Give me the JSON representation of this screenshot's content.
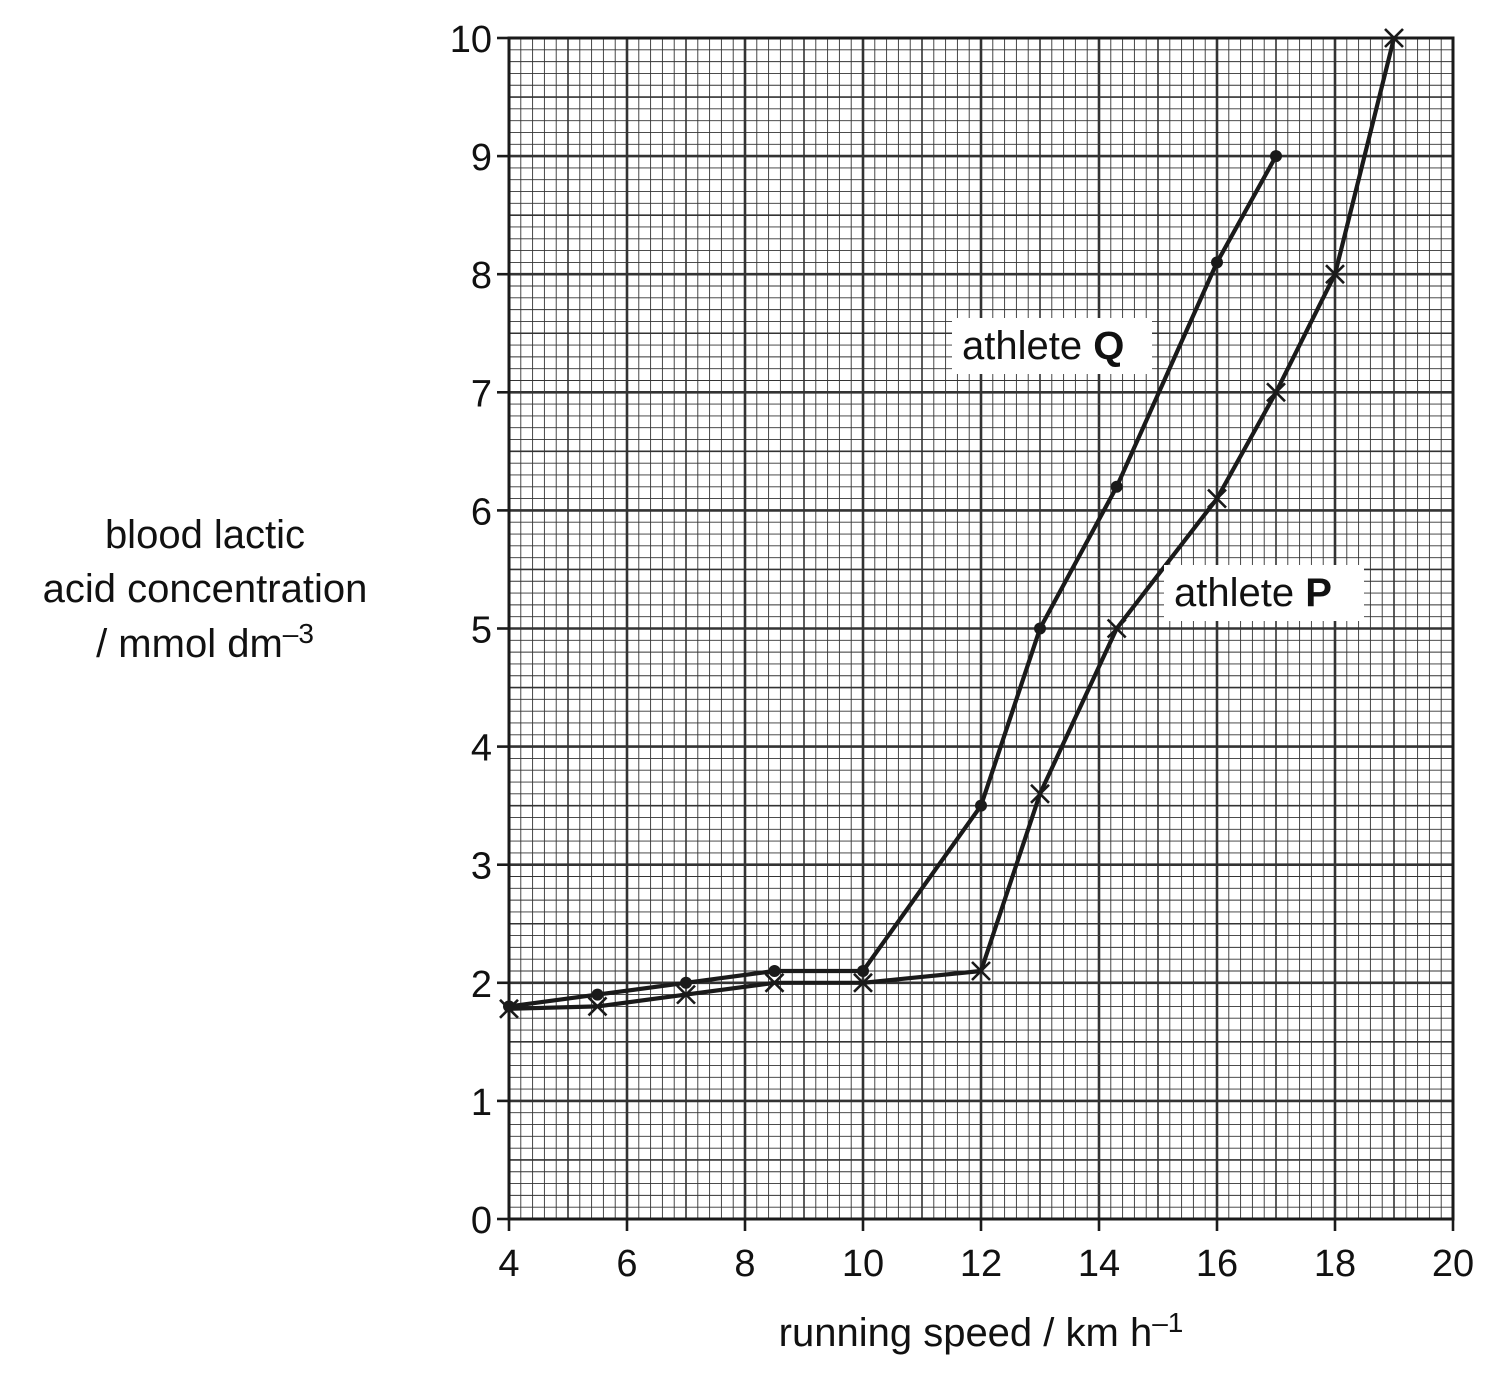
{
  "chart_data": {
    "type": "line",
    "xlabel": "running speed / km h",
    "xlabel_sup": "–1",
    "ylabel_lines": [
      "blood lactic",
      "acid concentration",
      "/ mmol dm"
    ],
    "ylabel_sup": "–3",
    "xlim": [
      4,
      20
    ],
    "ylim": [
      0,
      10
    ],
    "x_ticks": [
      4,
      6,
      8,
      10,
      12,
      14,
      16,
      18,
      20
    ],
    "y_ticks": [
      0,
      1,
      2,
      3,
      4,
      5,
      6,
      7,
      8,
      9,
      10
    ],
    "grid": "major, minor",
    "line_color": "#1a1a1a",
    "series": [
      {
        "name": "athlete Q",
        "label_prefix": "athlete ",
        "label_letter": "Q",
        "marker": "dot",
        "points": [
          [
            4,
            1.8
          ],
          [
            5.5,
            1.9
          ],
          [
            7,
            2.0
          ],
          [
            8.5,
            2.1
          ],
          [
            10,
            2.1
          ],
          [
            12,
            3.5
          ],
          [
            13,
            5.0
          ],
          [
            14.3,
            6.2
          ],
          [
            16,
            8.1
          ],
          [
            17,
            9.0
          ]
        ]
      },
      {
        "name": "athlete P",
        "label_prefix": "athlete ",
        "label_letter": "P",
        "marker": "cross",
        "points": [
          [
            4,
            1.78
          ],
          [
            5.5,
            1.8
          ],
          [
            7,
            1.9
          ],
          [
            8.5,
            2.0
          ],
          [
            10,
            2.0
          ],
          [
            12,
            2.1
          ],
          [
            13,
            3.6
          ],
          [
            14.3,
            5.0
          ],
          [
            16,
            6.1
          ],
          [
            17,
            7.0
          ],
          [
            18,
            8.0
          ],
          [
            19,
            10.0
          ]
        ]
      }
    ]
  }
}
